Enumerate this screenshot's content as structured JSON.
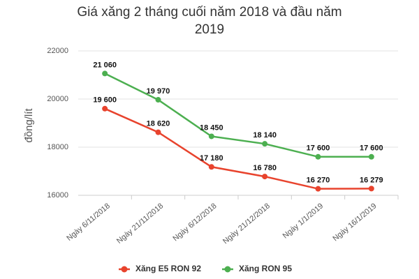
{
  "chart_data": {
    "type": "line",
    "title": "Giá xăng 2 tháng cuối năm 2018 và đầu năm 2019",
    "y_label": "đồng/lít",
    "categories": [
      "Ngày 6/11/2018",
      "Ngày 21/11/2018",
      "Ngày 6/12/2018",
      "Ngày 21/12/2018",
      "Ngày 1/1/2019",
      "Ngày 16/1/2019"
    ],
    "series": [
      {
        "name": "Xăng E5 RON 92",
        "color": "#e8432d",
        "values": [
          19600,
          18620,
          17180,
          16780,
          16270,
          16279
        ],
        "value_labels": [
          "19 600",
          "18 620",
          "17 180",
          "16 780",
          "16 270",
          "16 279"
        ]
      },
      {
        "name": "Xăng RON 95",
        "color": "#4caf50",
        "values": [
          21060,
          19970,
          18450,
          18140,
          17600,
          17600
        ],
        "value_labels": [
          "21 060",
          "19 970",
          "18 450",
          "18 140",
          "17 600",
          "17 600"
        ]
      }
    ],
    "ylim": [
      16000,
      22000
    ],
    "yticks": [
      16000,
      18000,
      20000,
      22000
    ],
    "grid": true
  }
}
